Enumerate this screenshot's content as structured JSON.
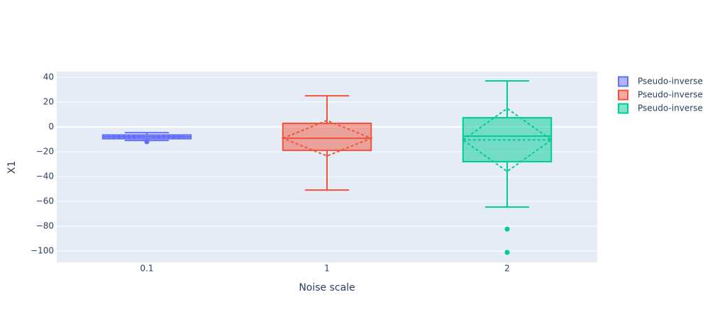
{
  "chart_data": {
    "type": "box",
    "x_label": "Noise scale",
    "y_label": "X1",
    "categories": [
      "0.1",
      "1",
      "2"
    ],
    "ylim": [
      -109.1,
      44.6
    ],
    "yticks": [
      40,
      20,
      0,
      {
        "value": -20,
        "label": "−20"
      },
      {
        "value": -40,
        "label": "−40"
      },
      {
        "value": -60,
        "label": "−60"
      },
      {
        "value": -80,
        "label": "−80"
      },
      {
        "value": -100,
        "label": "−100"
      }
    ],
    "grid": true,
    "legend_position": "right",
    "series": [
      {
        "name": "Pseudo-inverse",
        "color": "#636efa",
        "lowerfence": -10.9,
        "q1": -9.5,
        "median": -8,
        "q3": -6.5,
        "upperfence": -4.6,
        "mean": -8,
        "sd": 1.5,
        "outliers": [
          -12
        ]
      },
      {
        "name": "Pseudo-inverse",
        "color": "#EF553B",
        "lowerfence": -50.9,
        "q1": -18.9,
        "median": -9.1,
        "q3": 2.9,
        "upperfence": 25.1,
        "mean": -9.1,
        "sd": 14.3,
        "outliers": []
      },
      {
        "name": "Pseudo-inverse",
        "color": "#00cc96",
        "lowerfence": -64.6,
        "q1": -28,
        "median": -7.4,
        "q3": 7.4,
        "upperfence": 37.1,
        "mean": -10.5,
        "sd": 25.4,
        "outliers": [
          -82.3,
          -101.1
        ]
      }
    ]
  }
}
